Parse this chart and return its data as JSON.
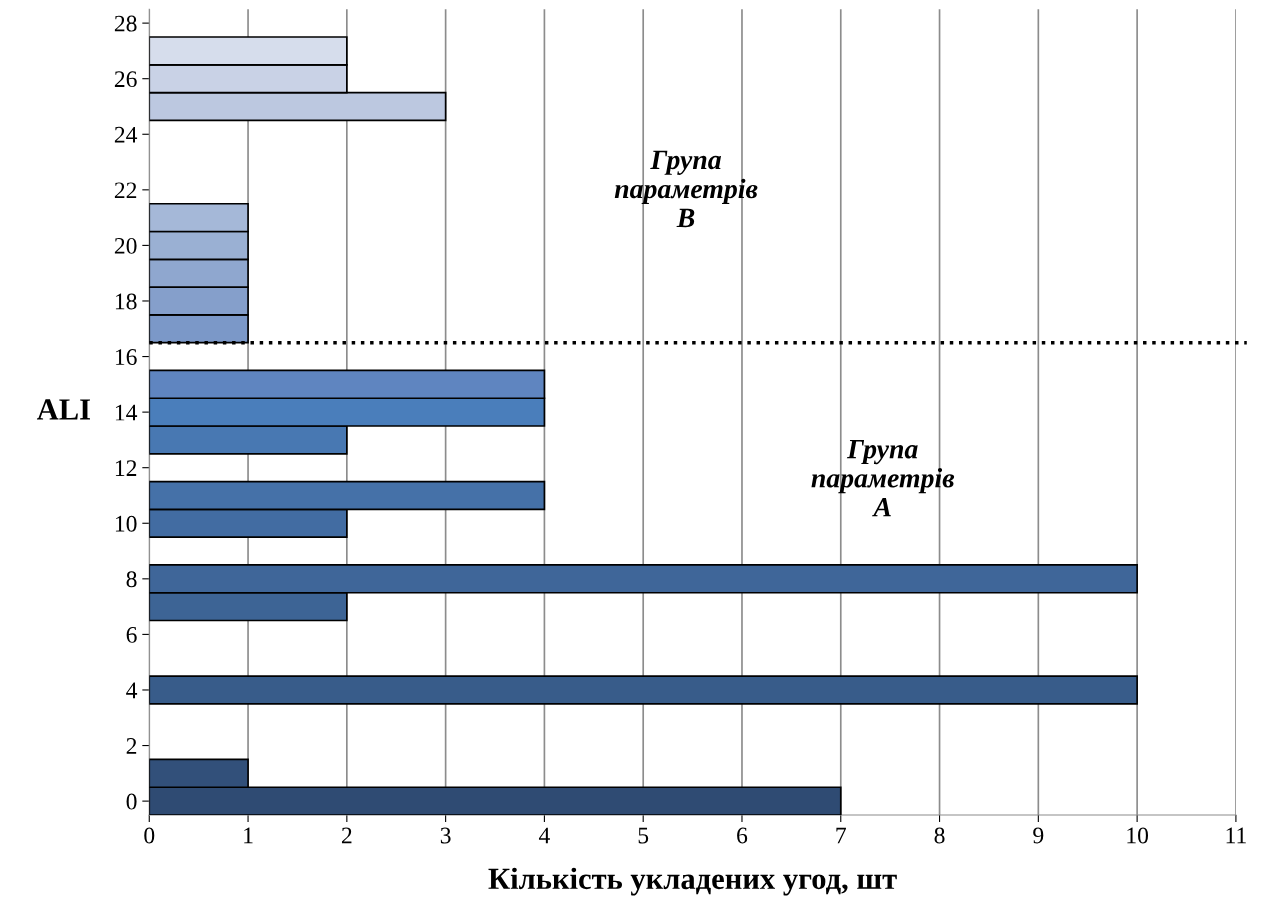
{
  "chart_data": {
    "type": "bar",
    "orientation": "horizontal",
    "xlabel": "Кількість укладених угод, шт",
    "ylabel": "ALI",
    "x": [
      0,
      1,
      4,
      7,
      8,
      10,
      11,
      13,
      14,
      15,
      17,
      18,
      19,
      20,
      21,
      25,
      26,
      27
    ],
    "values": [
      7,
      1,
      10,
      2,
      10,
      2,
      4,
      2,
      4,
      4,
      1,
      1,
      1,
      1,
      1,
      3,
      2,
      2
    ],
    "colors": [
      "#2f4b73",
      "#32507a",
      "#385c8a",
      "#3d6495",
      "#3f6699",
      "#426ca2",
      "#4571a8",
      "#4878b2",
      "#4a7ebb",
      "#5f85c0",
      "#7b98c8",
      "#859fcb",
      "#8fa7cf",
      "#9ab0d3",
      "#a5b8d8",
      "#bcc8e0",
      "#c9d2e6",
      "#d6ddec"
    ],
    "xlim": [
      0,
      11
    ],
    "xticks": [
      0,
      1,
      2,
      3,
      4,
      5,
      6,
      7,
      8,
      9,
      10,
      11
    ],
    "ylim": [
      -0.5,
      28.5
    ],
    "yticks": [
      0,
      2,
      4,
      6,
      8,
      10,
      12,
      14,
      16,
      18,
      20,
      22,
      24,
      26,
      28
    ],
    "grid": "x",
    "ref_lines": [
      {
        "axis": "y",
        "value": 16.5,
        "color": "#000000",
        "line_style": "dotted"
      }
    ],
    "annotations": [
      "Група\nпараметрів\nB",
      "Група\nпараметрів\nA"
    ]
  }
}
